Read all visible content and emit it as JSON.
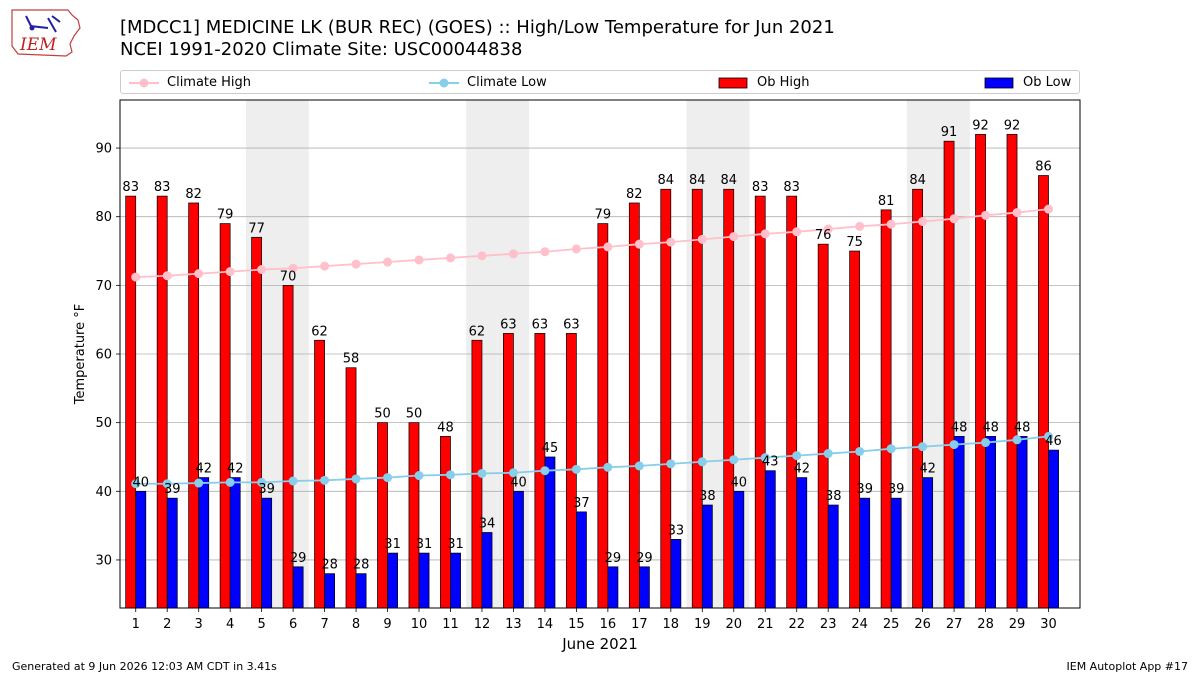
{
  "header": {
    "logo_text": "IEM",
    "title_line1": "[MDCC1] MEDICINE LK (BUR REC) (GOES) :: High/Low Temperature for Jun 2021",
    "title_line2": "NCEI 1991-2020 Climate Site: USC00044838"
  },
  "legend": {
    "items": [
      {
        "label": "Climate High",
        "color": "#ffc0cb"
      },
      {
        "label": "Climate Low",
        "color": "#87ceeb"
      },
      {
        "label": "Ob High",
        "color": "#ff0000"
      },
      {
        "label": "Ob Low",
        "color": "#0000ff"
      }
    ]
  },
  "chart_data": {
    "type": "bar",
    "xlabel": "June 2021",
    "ylabel": "Temperature °F",
    "ylim": [
      23,
      97
    ],
    "y_ticks": [
      30,
      40,
      50,
      60,
      70,
      80,
      90
    ],
    "grid": true,
    "legend_position": "top",
    "categories": [
      "1",
      "2",
      "3",
      "4",
      "5",
      "6",
      "7",
      "8",
      "9",
      "10",
      "11",
      "12",
      "13",
      "14",
      "15",
      "16",
      "17",
      "18",
      "19",
      "20",
      "21",
      "22",
      "23",
      "24",
      "25",
      "26",
      "27",
      "28",
      "29",
      "30"
    ],
    "weekend_shaded_days": [
      5,
      6,
      12,
      13,
      19,
      20,
      26,
      27
    ],
    "series": [
      {
        "name": "Ob High",
        "color": "#ff0000",
        "values": [
          83,
          83,
          82,
          79,
          77,
          70,
          62,
          58,
          50,
          50,
          48,
          62,
          63,
          63,
          63,
          79,
          82,
          84,
          84,
          84,
          83,
          83,
          76,
          75,
          81,
          84,
          91,
          92,
          92,
          86
        ]
      },
      {
        "name": "Ob Low",
        "color": "#0000ff",
        "values": [
          40,
          39,
          42,
          42,
          39,
          29,
          28,
          28,
          31,
          31,
          31,
          34,
          40,
          45,
          37,
          29,
          29,
          33,
          38,
          40,
          43,
          42,
          38,
          39,
          39,
          42,
          48,
          48,
          48,
          46
        ]
      }
    ],
    "climate_high": {
      "name": "Climate High",
      "color": "#ffc0cb",
      "values": [
        71.2,
        71.4,
        71.7,
        72.0,
        72.3,
        72.5,
        72.8,
        73.1,
        73.4,
        73.7,
        74.0,
        74.3,
        74.6,
        74.9,
        75.3,
        75.6,
        76.0,
        76.3,
        76.7,
        77.1,
        77.5,
        77.8,
        78.2,
        78.6,
        78.9,
        79.3,
        79.7,
        80.2,
        80.6,
        81.1
      ]
    },
    "climate_low": {
      "name": "Climate Low",
      "color": "#87ceeb",
      "values": [
        41.1,
        41.1,
        41.2,
        41.3,
        41.3,
        41.5,
        41.6,
        41.8,
        42.0,
        42.3,
        42.4,
        42.6,
        42.7,
        43.0,
        43.2,
        43.5,
        43.7,
        44.0,
        44.3,
        44.6,
        44.9,
        45.2,
        45.5,
        45.8,
        46.2,
        46.5,
        46.8,
        47.1,
        47.5,
        48.0
      ]
    }
  },
  "footer": {
    "generated": "Generated at 9 Jun 2026 12:03 AM CDT in 3.41s",
    "app": "IEM Autoplot App #17"
  }
}
